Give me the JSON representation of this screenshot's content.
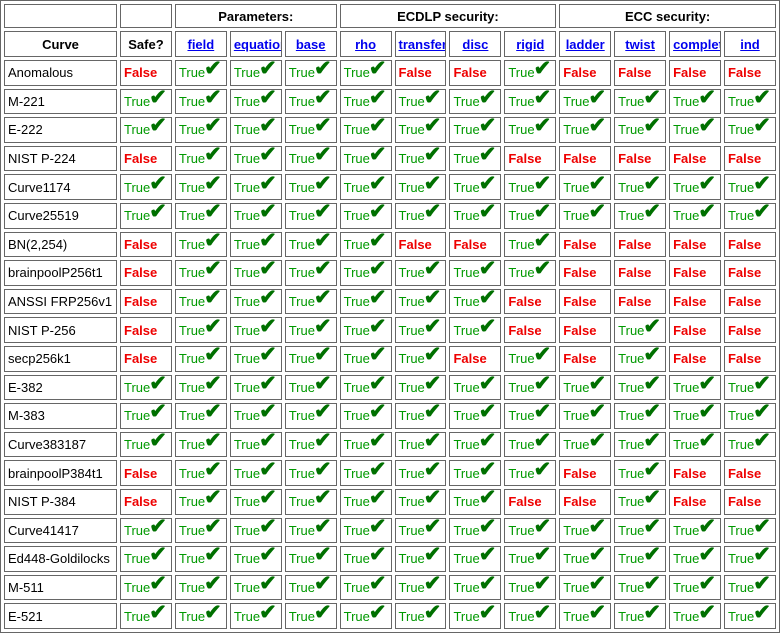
{
  "colors": {
    "true_green": "#009900",
    "check_green": "#007000",
    "false_red": "#ee0000",
    "link_blue": "#0000ee",
    "border": "#666666"
  },
  "table": {
    "true_label": "True",
    "false_label": "False",
    "check_icon": "✔",
    "group_headers": [
      {
        "label": "",
        "colspan": 1
      },
      {
        "label": "",
        "colspan": 1
      },
      {
        "label": "Parameters:",
        "colspan": 3
      },
      {
        "label": "ECDLP security:",
        "colspan": 4
      },
      {
        "label": "ECC security:",
        "colspan": 4
      }
    ],
    "column_headers": [
      {
        "label": "Curve",
        "link": false
      },
      {
        "label": "Safe?",
        "link": false
      },
      {
        "label": "field",
        "link": true
      },
      {
        "label": "equation",
        "link": true
      },
      {
        "label": "base",
        "link": true
      },
      {
        "label": "rho",
        "link": true
      },
      {
        "label": "transfer",
        "link": true
      },
      {
        "label": "disc",
        "link": true
      },
      {
        "label": "rigid",
        "link": true
      },
      {
        "label": "ladder",
        "link": true
      },
      {
        "label": "twist",
        "link": true
      },
      {
        "label": "complete",
        "link": true
      },
      {
        "label": "ind",
        "link": true
      }
    ],
    "rows": [
      {
        "curve": "Anomalous",
        "values": [
          false,
          true,
          true,
          true,
          true,
          false,
          false,
          true,
          false,
          false,
          false,
          false
        ]
      },
      {
        "curve": "M-221",
        "values": [
          true,
          true,
          true,
          true,
          true,
          true,
          true,
          true,
          true,
          true,
          true,
          true
        ]
      },
      {
        "curve": "E-222",
        "values": [
          true,
          true,
          true,
          true,
          true,
          true,
          true,
          true,
          true,
          true,
          true,
          true
        ]
      },
      {
        "curve": "NIST P-224",
        "values": [
          false,
          true,
          true,
          true,
          true,
          true,
          true,
          false,
          false,
          false,
          false,
          false
        ]
      },
      {
        "curve": "Curve1174",
        "values": [
          true,
          true,
          true,
          true,
          true,
          true,
          true,
          true,
          true,
          true,
          true,
          true
        ]
      },
      {
        "curve": "Curve25519",
        "values": [
          true,
          true,
          true,
          true,
          true,
          true,
          true,
          true,
          true,
          true,
          true,
          true
        ]
      },
      {
        "curve": "BN(2,254)",
        "values": [
          false,
          true,
          true,
          true,
          true,
          false,
          false,
          true,
          false,
          false,
          false,
          false
        ]
      },
      {
        "curve": "brainpoolP256t1",
        "values": [
          false,
          true,
          true,
          true,
          true,
          true,
          true,
          true,
          false,
          false,
          false,
          false
        ]
      },
      {
        "curve": "ANSSI FRP256v1",
        "values": [
          false,
          true,
          true,
          true,
          true,
          true,
          true,
          false,
          false,
          false,
          false,
          false
        ]
      },
      {
        "curve": "NIST P-256",
        "values": [
          false,
          true,
          true,
          true,
          true,
          true,
          true,
          false,
          false,
          true,
          false,
          false
        ]
      },
      {
        "curve": "secp256k1",
        "values": [
          false,
          true,
          true,
          true,
          true,
          true,
          false,
          true,
          false,
          true,
          false,
          false
        ]
      },
      {
        "curve": "E-382",
        "values": [
          true,
          true,
          true,
          true,
          true,
          true,
          true,
          true,
          true,
          true,
          true,
          true
        ]
      },
      {
        "curve": "M-383",
        "values": [
          true,
          true,
          true,
          true,
          true,
          true,
          true,
          true,
          true,
          true,
          true,
          true
        ]
      },
      {
        "curve": "Curve383187",
        "values": [
          true,
          true,
          true,
          true,
          true,
          true,
          true,
          true,
          true,
          true,
          true,
          true
        ]
      },
      {
        "curve": "brainpoolP384t1",
        "values": [
          false,
          true,
          true,
          true,
          true,
          true,
          true,
          true,
          false,
          true,
          false,
          false
        ]
      },
      {
        "curve": "NIST P-384",
        "values": [
          false,
          true,
          true,
          true,
          true,
          true,
          true,
          false,
          false,
          true,
          false,
          false
        ]
      },
      {
        "curve": "Curve41417",
        "values": [
          true,
          true,
          true,
          true,
          true,
          true,
          true,
          true,
          true,
          true,
          true,
          true
        ]
      },
      {
        "curve": "Ed448-Goldilocks",
        "values": [
          true,
          true,
          true,
          true,
          true,
          true,
          true,
          true,
          true,
          true,
          true,
          true
        ]
      },
      {
        "curve": "M-511",
        "values": [
          true,
          true,
          true,
          true,
          true,
          true,
          true,
          true,
          true,
          true,
          true,
          true
        ]
      },
      {
        "curve": "E-521",
        "values": [
          true,
          true,
          true,
          true,
          true,
          true,
          true,
          true,
          true,
          true,
          true,
          true
        ]
      }
    ]
  }
}
